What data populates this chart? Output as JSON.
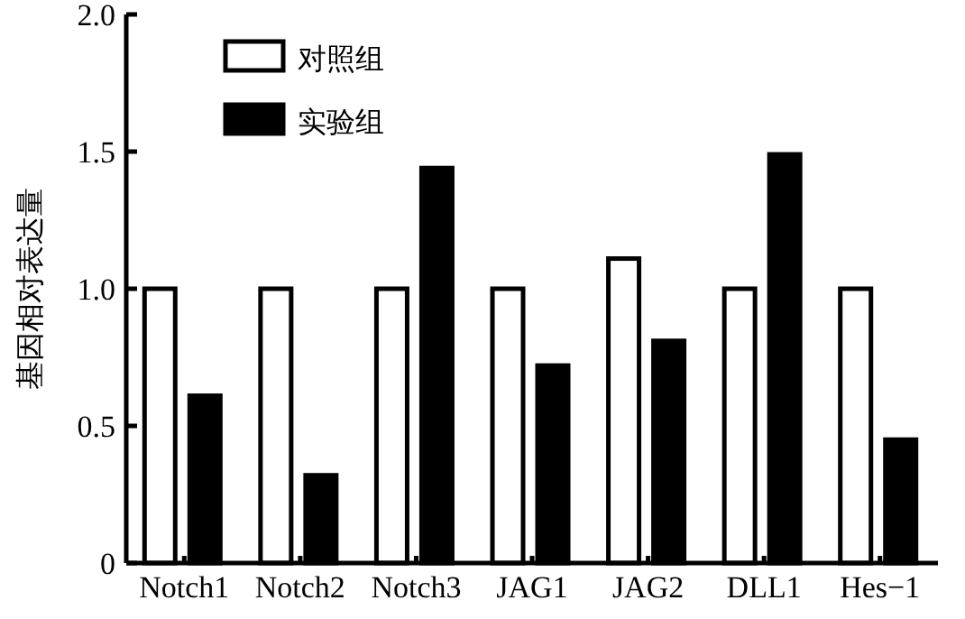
{
  "chart_data": {
    "type": "bar",
    "ylabel": "基因相对表达量",
    "categories": [
      "Notch1",
      "Notch2",
      "Notch3",
      "JAG1",
      "JAG2",
      "DLL1",
      "Hes−1"
    ],
    "series": [
      {
        "name": "对照组",
        "color": "#ffffff",
        "values": [
          1.0,
          1.0,
          1.0,
          1.0,
          1.11,
          1.0,
          1.0
        ]
      },
      {
        "name": "实验组",
        "color": "#000000",
        "values": [
          0.61,
          0.32,
          1.44,
          0.72,
          0.81,
          1.49,
          0.45
        ]
      }
    ],
    "ylim": [
      0,
      2.0
    ],
    "yticks": [
      {
        "value": 0,
        "label": "0"
      },
      0.5,
      {
        "value": 1,
        "label": "1.0"
      },
      1.5,
      {
        "value": 2,
        "label": "2.0"
      }
    ],
    "legend": "top left",
    "grid": false
  }
}
